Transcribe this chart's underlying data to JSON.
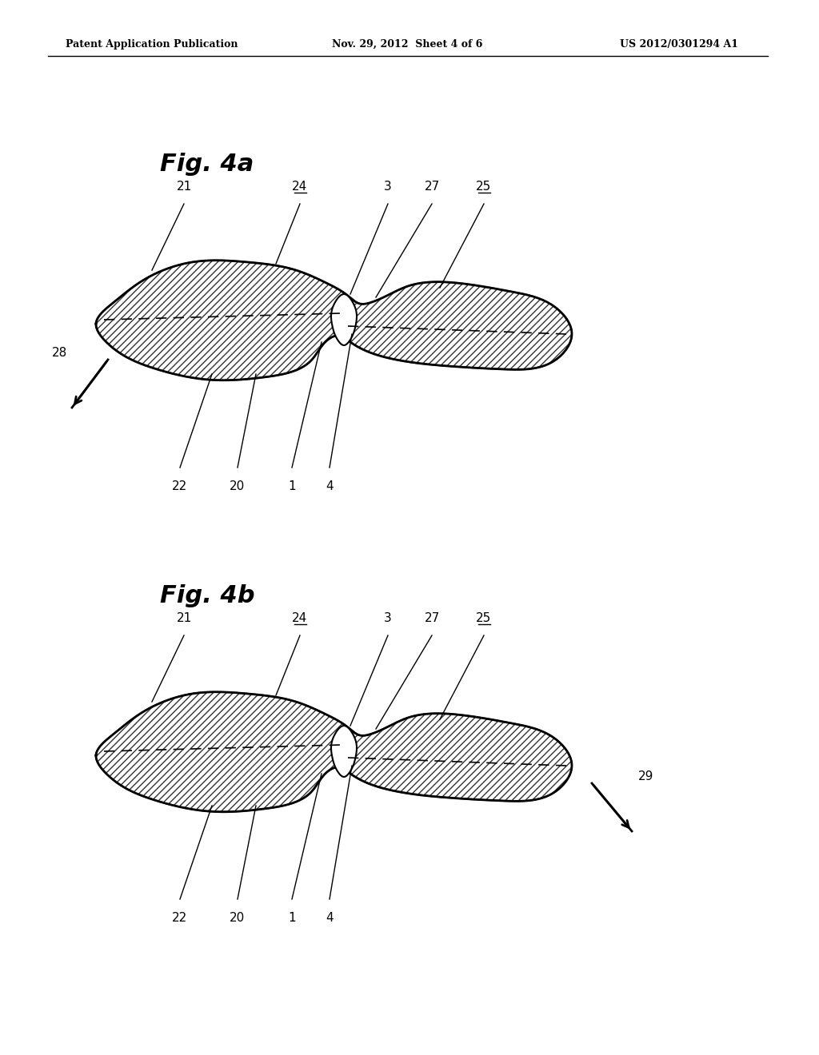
{
  "bg_color": "#ffffff",
  "header_left": "Patent Application Publication",
  "header_mid": "Nov. 29, 2012  Sheet 4 of 6",
  "header_right": "US 2012/0301294 A1",
  "fig4a_title": "Fig. 4a",
  "fig4b_title": "Fig. 4b",
  "text_color": "#000000",
  "line_color": "#000000"
}
